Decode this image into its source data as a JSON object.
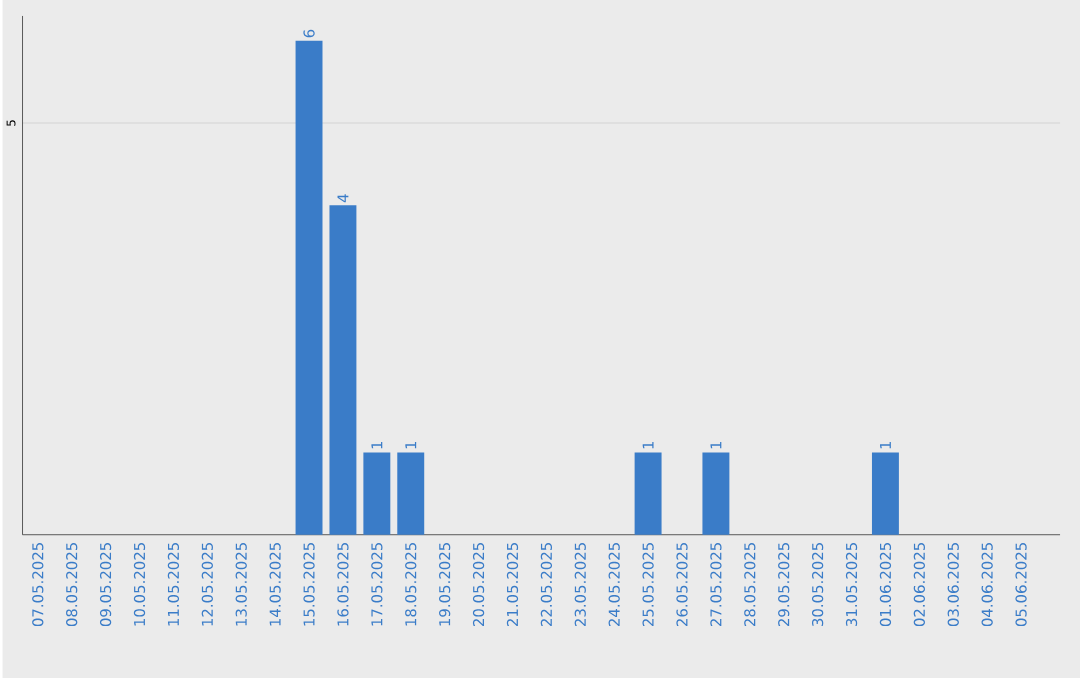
{
  "chart_data": {
    "type": "bar",
    "categories": [
      "07.05.2025",
      "08.05.2025",
      "09.05.2025",
      "10.05.2025",
      "11.05.2025",
      "12.05.2025",
      "13.05.2025",
      "14.05.2025",
      "15.05.2025",
      "16.05.2025",
      "17.05.2025",
      "18.05.2025",
      "19.05.2025",
      "20.05.2025",
      "21.05.2025",
      "22.05.2025",
      "23.05.2025",
      "24.05.2025",
      "25.05.2025",
      "26.05.2025",
      "27.05.2025",
      "28.05.2025",
      "29.05.2025",
      "30.05.2025",
      "31.05.2025",
      "01.06.2025",
      "02.06.2025",
      "03.06.2025",
      "04.06.2025",
      "05.06.2025"
    ],
    "values": [
      0,
      0,
      0,
      0,
      0,
      0,
      0,
      0,
      6,
      4,
      1,
      1,
      0,
      0,
      0,
      0,
      0,
      0,
      1,
      0,
      1,
      0,
      0,
      0,
      0,
      1,
      0,
      0,
      0,
      0
    ],
    "value_labels": [
      null,
      null,
      null,
      null,
      null,
      null,
      null,
      null,
      "6",
      "4",
      "1",
      "1",
      null,
      null,
      null,
      null,
      null,
      null,
      "1",
      null,
      "1",
      null,
      null,
      null,
      null,
      "1",
      null,
      null,
      null,
      null
    ],
    "color": "#3a7cc8",
    "ylim": [
      0,
      6.3
    ],
    "yticks": [
      5
    ],
    "grid": "y"
  }
}
